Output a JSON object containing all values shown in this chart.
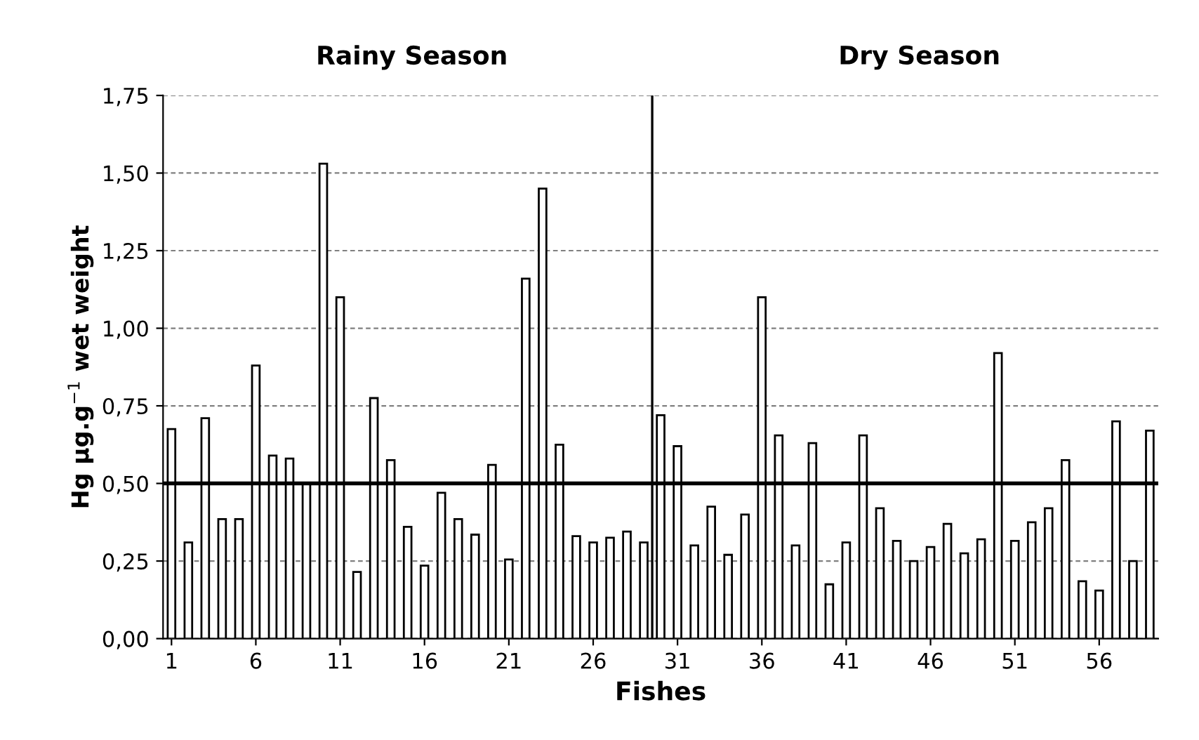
{
  "chart_data": {
    "type": "bar",
    "xlabel": "Fishes",
    "ylabel": "Hg µg.g$^{−1}$ wet weight",
    "annotations": [
      "Rainy Season",
      "Dry Season"
    ],
    "x": [
      1,
      2,
      3,
      4,
      5,
      6,
      7,
      8,
      9,
      10,
      11,
      12,
      13,
      14,
      15,
      16,
      17,
      18,
      19,
      20,
      21,
      22,
      23,
      24,
      25,
      26,
      27,
      28,
      29,
      30,
      31,
      32,
      33,
      34,
      35,
      36,
      37,
      38,
      39,
      40,
      41,
      42,
      43,
      44,
      45,
      46,
      47,
      48,
      49,
      50,
      51,
      52,
      53,
      54,
      55,
      56,
      57,
      58,
      59
    ],
    "values": [
      0.675,
      0.31,
      0.71,
      0.385,
      0.385,
      0.88,
      0.59,
      0.58,
      0.5,
      1.53,
      1.1,
      0.215,
      0.775,
      0.575,
      0.36,
      0.235,
      0.47,
      0.385,
      0.335,
      0.56,
      0.255,
      1.16,
      1.45,
      0.625,
      0.33,
      0.31,
      0.325,
      0.345,
      0.31,
      0.72,
      0.62,
      0.3,
      0.425,
      0.27,
      0.4,
      1.1,
      0.655,
      0.3,
      0.63,
      0.175,
      0.31,
      0.655,
      0.42,
      0.315,
      0.25,
      0.295,
      0.37,
      0.275,
      0.32,
      0.92,
      0.315,
      0.375,
      0.42,
      0.575,
      0.185,
      0.155,
      0.7,
      0.25,
      0.67
    ],
    "color": "#ffffff",
    "xlim": [
      0.5,
      59.5
    ],
    "xticks": [
      1,
      6,
      11,
      16,
      21,
      26,
      31,
      36,
      41,
      46,
      51,
      56
    ],
    "ylim": [
      0,
      1.75
    ],
    "yticks": [
      {
        "value": 0,
        "label": "0,00"
      },
      {
        "value": 0.25,
        "label": "0,25"
      },
      {
        "value": 0.5,
        "label": "0,50"
      },
      {
        "value": 0.75,
        "label": "0,75"
      },
      {
        "value": 1.0,
        "label": "1,00"
      },
      {
        "value": 1.25,
        "label": "1,25"
      },
      {
        "value": 1.5,
        "label": "1,50"
      },
      {
        "value": 1.75,
        "label": "1,75"
      }
    ],
    "ref_lines": [
      {
        "axis": "y",
        "value": 0.5,
        "color": "#000000"
      },
      {
        "axis": "x",
        "value": 29.5,
        "color": "#000000"
      }
    ],
    "grid": "y",
    "legend": false
  }
}
